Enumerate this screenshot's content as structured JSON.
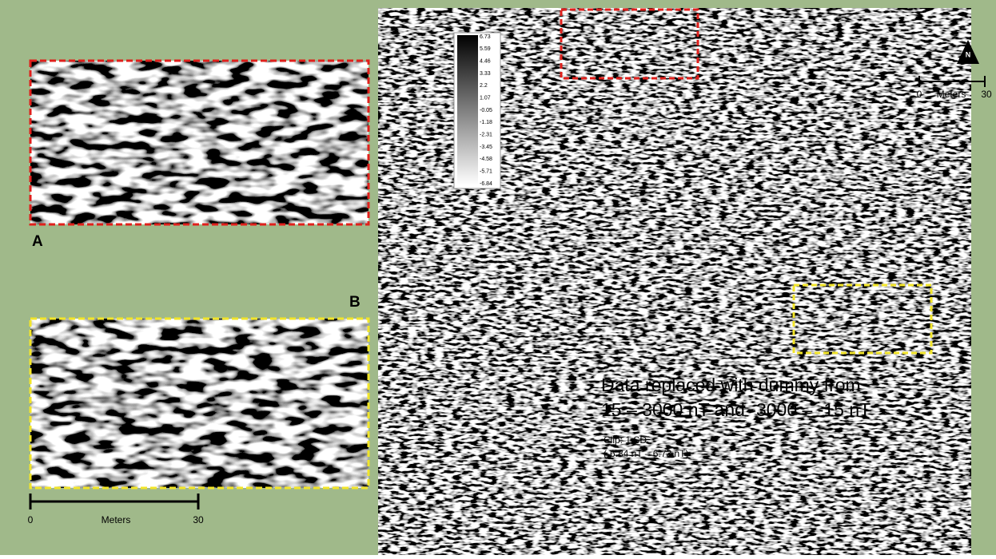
{
  "panel_a": {
    "label": "A"
  },
  "panel_b": {
    "label": "B"
  },
  "north_arrow": {
    "label": "N"
  },
  "scale_bar_main": {
    "start": "0",
    "unit": "Meters",
    "end": "30"
  },
  "scale_bar_inset": {
    "start": "0",
    "unit": "Meters",
    "end": "30"
  },
  "color_bar": {
    "labels": [
      "6.73",
      "5.59",
      "4.46",
      "3.33",
      "2.2",
      "1.07",
      "-0.05",
      "-1.18",
      "-2.31",
      "-3.45",
      "-4.58",
      "-5.71",
      "-6.84"
    ]
  },
  "note": {
    "lines": [
      "Data replaced with dummy from",
      "15 – 3000 nT and -3000 – -15 nT"
    ],
    "clip": [
      "Clip: 1 SD",
      "(-6.84 nT – 6.73 nT)"
    ]
  }
}
